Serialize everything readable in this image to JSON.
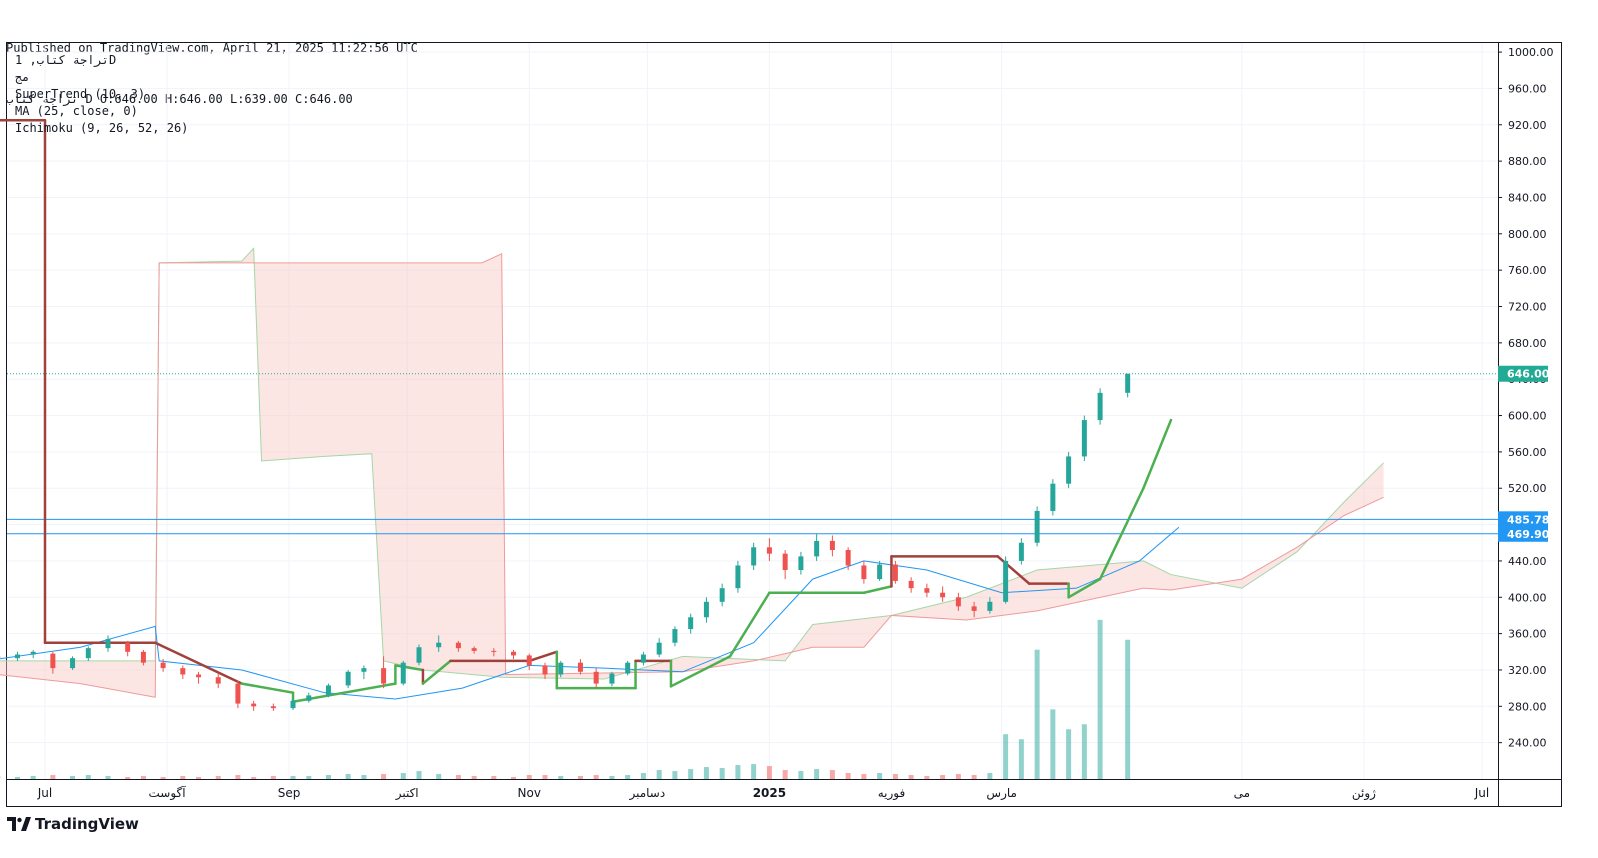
{
  "header": {
    "published": "Published on TradingView.com, April 21, 2025 11:22:56 UTC",
    "ohlc": "تراجة كتاب D O:646.00 H:646.00 L:639.00 C:646.00"
  },
  "legend": {
    "symbol": "تراجة كتاب, 1D",
    "exchange": "مج",
    "supertrend": "SuperTrend (10, 3)",
    "ma": "MA (25, close, 0)",
    "ichimoku": "Ichimoku (9, 26, 52, 26)"
  },
  "footer": {
    "brand": "TradingView",
    "logo_icon": "tradingview-logo-icon"
  },
  "colors": {
    "up": "#26a69a",
    "down": "#ef5350",
    "supertrend_up": "#4caf50",
    "supertrend_down": "#a0413c",
    "ma": "#2196f3",
    "hline": "#2196f3",
    "last_price": "#22ab94",
    "cloud_bull": "#c8e6c9",
    "cloud_bear": "#f8c8c4"
  },
  "chart_data": {
    "type": "candlestick",
    "title": "",
    "ylim": [
      200,
      1010
    ],
    "y_ticks": [
      "1000.00",
      "960.00",
      "920.00",
      "880.00",
      "840.00",
      "800.00",
      "760.00",
      "720.00",
      "680.00",
      "640.00",
      "600.00",
      "560.00",
      "520.00",
      "480.00",
      "440.00",
      "400.00",
      "360.00",
      "320.00",
      "280.00",
      "240.00"
    ],
    "x_labels": [
      {
        "label": "Jul",
        "date": "2024-07-01",
        "bold": false
      },
      {
        "label": "آگوست",
        "date": "2024-08-01",
        "bold": false
      },
      {
        "label": "Sep",
        "date": "2024-09-01",
        "bold": false
      },
      {
        "label": "اکتبر",
        "date": "2024-10-01",
        "bold": false
      },
      {
        "label": "Nov",
        "date": "2024-11-01",
        "bold": false
      },
      {
        "label": "دسامبر",
        "date": "2024-12-01",
        "bold": false
      },
      {
        "label": "2025",
        "date": "2025-01-01",
        "bold": true
      },
      {
        "label": "فوریه",
        "date": "2025-02-01",
        "bold": false
      },
      {
        "label": "مارس",
        "date": "2025-03-01",
        "bold": false
      },
      {
        "label": "می",
        "date": "2025-05-01",
        "bold": false
      },
      {
        "label": "ژوئن",
        "date": "2025-06-01",
        "bold": false
      },
      {
        "label": "Jul",
        "date": "2025-07-01",
        "bold": false
      }
    ],
    "last_price": {
      "label": "646.00",
      "value": 646
    },
    "horizontal_lines": [
      {
        "label": "485.78",
        "value": 485.78
      },
      {
        "label": "469.90",
        "value": 469.9
      }
    ],
    "candles": [
      [
        "2024-06-19",
        335,
        338,
        330,
        333
      ],
      [
        "2024-06-24",
        333,
        340,
        330,
        337
      ],
      [
        "2024-06-28",
        337,
        342,
        333,
        340
      ],
      [
        "2024-07-03",
        338,
        340,
        316,
        322
      ],
      [
        "2024-07-08",
        322,
        335,
        320,
        333
      ],
      [
        "2024-07-12",
        333,
        346,
        330,
        344
      ],
      [
        "2024-07-17",
        344,
        358,
        340,
        354
      ],
      [
        "2024-07-22",
        350,
        352,
        335,
        340
      ],
      [
        "2024-07-26",
        340,
        342,
        325,
        328
      ],
      [
        "2024-07-31",
        328,
        332,
        318,
        322
      ],
      [
        "2024-08-05",
        322,
        325,
        310,
        315
      ],
      [
        "2024-08-09",
        315,
        318,
        305,
        312
      ],
      [
        "2024-08-14",
        312,
        316,
        300,
        305
      ],
      [
        "2024-08-19",
        305,
        308,
        278,
        283
      ],
      [
        "2024-08-23",
        283,
        286,
        275,
        280
      ],
      [
        "2024-08-28",
        280,
        283,
        275,
        278
      ],
      [
        "2024-09-02",
        278,
        288,
        276,
        286
      ],
      [
        "2024-09-06",
        286,
        295,
        284,
        292
      ],
      [
        "2024-09-11",
        292,
        305,
        290,
        303
      ],
      [
        "2024-09-16",
        303,
        320,
        300,
        318
      ],
      [
        "2024-09-20",
        318,
        325,
        310,
        322
      ],
      [
        "2024-09-25",
        322,
        335,
        300,
        305
      ],
      [
        "2024-09-30",
        305,
        330,
        303,
        328
      ],
      [
        "2024-10-04",
        328,
        348,
        325,
        345
      ],
      [
        "2024-10-09",
        345,
        358,
        340,
        350
      ],
      [
        "2024-10-14",
        350,
        352,
        340,
        344
      ],
      [
        "2024-10-18",
        344,
        346,
        338,
        341
      ],
      [
        "2024-10-23",
        341,
        344,
        335,
        340
      ],
      [
        "2024-10-28",
        340,
        342,
        332,
        336
      ],
      [
        "2024-11-01",
        336,
        338,
        320,
        325
      ],
      [
        "2024-11-05",
        325,
        328,
        310,
        315
      ],
      [
        "2024-11-09",
        315,
        330,
        312,
        328
      ],
      [
        "2024-11-14",
        328,
        332,
        315,
        318
      ],
      [
        "2024-11-18",
        318,
        322,
        300,
        305
      ],
      [
        "2024-11-22",
        305,
        318,
        302,
        316
      ],
      [
        "2024-11-26",
        316,
        330,
        314,
        328
      ],
      [
        "2024-11-30",
        328,
        340,
        325,
        337
      ],
      [
        "2024-12-04",
        337,
        355,
        334,
        350
      ],
      [
        "2024-12-08",
        350,
        368,
        346,
        365
      ],
      [
        "2024-12-12",
        365,
        382,
        360,
        378
      ],
      [
        "2024-12-16",
        378,
        400,
        372,
        395
      ],
      [
        "2024-12-20",
        395,
        415,
        390,
        410
      ],
      [
        "2024-12-24",
        410,
        440,
        405,
        435
      ],
      [
        "2024-12-28",
        435,
        460,
        430,
        455
      ],
      [
        "2025-01-01",
        455,
        465,
        440,
        448
      ],
      [
        "2025-01-05",
        448,
        452,
        420,
        430
      ],
      [
        "2025-01-09",
        430,
        450,
        425,
        445
      ],
      [
        "2025-01-13",
        445,
        470,
        440,
        462
      ],
      [
        "2025-01-17",
        462,
        468,
        445,
        452
      ],
      [
        "2025-01-21",
        452,
        455,
        430,
        435
      ],
      [
        "2025-01-25",
        435,
        440,
        415,
        420
      ],
      [
        "2025-01-29",
        420,
        440,
        418,
        436
      ],
      [
        "2025-02-02",
        436,
        440,
        415,
        418
      ],
      [
        "2025-02-06",
        418,
        422,
        405,
        410
      ],
      [
        "2025-02-10",
        410,
        415,
        400,
        405
      ],
      [
        "2025-02-14",
        405,
        412,
        395,
        400
      ],
      [
        "2025-02-18",
        400,
        405,
        385,
        390
      ],
      [
        "2025-02-22",
        390,
        395,
        378,
        385
      ],
      [
        "2025-02-26",
        385,
        400,
        382,
        395
      ],
      [
        "2025-03-02",
        395,
        445,
        393,
        440
      ],
      [
        "2025-03-06",
        440,
        465,
        436,
        460
      ],
      [
        "2025-03-10",
        460,
        500,
        456,
        495
      ],
      [
        "2025-03-14",
        495,
        530,
        490,
        525
      ],
      [
        "2025-03-18",
        525,
        560,
        520,
        555
      ],
      [
        "2025-03-22",
        555,
        600,
        550,
        595
      ],
      [
        "2025-03-26",
        595,
        630,
        590,
        625
      ],
      [
        "2025-04-02",
        625,
        646,
        620,
        646
      ]
    ],
    "supertrend": [
      [
        "2024-06-19",
        925
      ],
      [
        "2024-07-01",
        925
      ],
      [
        "2024-07-01",
        350
      ],
      [
        "2024-07-29",
        350
      ],
      [
        "2024-08-20",
        305
      ],
      [
        "2024-09-02",
        295
      ],
      [
        "2024-09-02",
        285
      ],
      [
        "2024-09-28",
        305
      ],
      [
        "2024-09-28",
        325
      ],
      [
        "2024-10-05",
        320
      ],
      [
        "2024-10-05",
        305
      ],
      [
        "2024-10-12",
        330
      ],
      [
        "2024-11-01",
        330
      ],
      [
        "2024-11-08",
        340
      ],
      [
        "2024-11-08",
        300
      ],
      [
        "2024-11-28",
        300
      ],
      [
        "2024-11-28",
        330
      ],
      [
        "2024-12-07",
        330
      ],
      [
        "2024-12-07",
        302
      ],
      [
        "2024-12-22",
        335
      ],
      [
        "2025-01-01",
        405
      ],
      [
        "2025-01-25",
        405
      ],
      [
        "2025-02-01",
        412
      ],
      [
        "2025-02-01",
        445
      ],
      [
        "2025-02-28",
        445
      ],
      [
        "2025-03-08",
        415
      ],
      [
        "2025-03-18",
        415
      ],
      [
        "2025-03-18",
        400
      ],
      [
        "2025-03-26",
        420
      ],
      [
        "2025-04-06",
        520
      ],
      [
        "2025-04-13",
        595
      ]
    ],
    "ma": [
      [
        "2024-06-19",
        332
      ],
      [
        "2024-07-10",
        345
      ],
      [
        "2024-07-29",
        368
      ],
      [
        "2024-07-30",
        330
      ],
      [
        "2024-08-20",
        320
      ],
      [
        "2024-09-10",
        295
      ],
      [
        "2024-09-28",
        288
      ],
      [
        "2024-10-15",
        300
      ],
      [
        "2024-11-01",
        325
      ],
      [
        "2024-11-20",
        322
      ],
      [
        "2024-12-10",
        318
      ],
      [
        "2024-12-28",
        350
      ],
      [
        "2025-01-12",
        420
      ],
      [
        "2025-01-25",
        440
      ],
      [
        "2025-02-10",
        430
      ],
      [
        "2025-03-01",
        405
      ],
      [
        "2025-03-20",
        410
      ],
      [
        "2025-04-05",
        440
      ],
      [
        "2025-04-15",
        477
      ]
    ],
    "ichimoku_span_a": [
      [
        "2024-06-19",
        330
      ],
      [
        "2024-07-29",
        330
      ],
      [
        "2024-07-30",
        768
      ],
      [
        "2024-08-20",
        770
      ],
      [
        "2024-08-23",
        784
      ],
      [
        "2024-08-25",
        550
      ],
      [
        "2024-09-10",
        555
      ],
      [
        "2024-09-22",
        558
      ],
      [
        "2024-09-25",
        330
      ],
      [
        "2024-10-05",
        320
      ],
      [
        "2024-10-25",
        312
      ],
      [
        "2024-11-20",
        310
      ],
      [
        "2024-12-10",
        335
      ],
      [
        "2025-01-05",
        330
      ],
      [
        "2025-01-12",
        370
      ],
      [
        "2025-02-01",
        380
      ],
      [
        "2025-02-20",
        400
      ],
      [
        "2025-03-10",
        430
      ],
      [
        "2025-04-06",
        440
      ],
      [
        "2025-04-13",
        425
      ],
      [
        "2025-05-01",
        410
      ],
      [
        "2025-05-15",
        450
      ],
      [
        "2025-05-27",
        505
      ],
      [
        "2025-06-06",
        548
      ]
    ],
    "ichimoku_span_b": [
      [
        "2024-06-19",
        315
      ],
      [
        "2024-07-10",
        305
      ],
      [
        "2024-07-29",
        290
      ],
      [
        "2024-07-30",
        768
      ],
      [
        "2024-10-20",
        768
      ],
      [
        "2024-10-25",
        778
      ],
      [
        "2024-10-26",
        315
      ],
      [
        "2024-12-10",
        318
      ],
      [
        "2024-12-28",
        330
      ],
      [
        "2025-01-12",
        345
      ],
      [
        "2025-01-25",
        345
      ],
      [
        "2025-02-01",
        380
      ],
      [
        "2025-02-20",
        375
      ],
      [
        "2025-03-10",
        385
      ],
      [
        "2025-04-06",
        410
      ],
      [
        "2025-04-13",
        408
      ],
      [
        "2025-05-01",
        420
      ],
      [
        "2025-05-15",
        455
      ],
      [
        "2025-05-27",
        490
      ],
      [
        "2025-06-06",
        510
      ]
    ],
    "volume": [
      [
        "2024-06-19",
        3
      ],
      [
        "2024-06-24",
        2
      ],
      [
        "2024-06-28",
        3
      ],
      [
        "2024-07-03",
        4
      ],
      [
        "2024-07-08",
        3
      ],
      [
        "2024-07-12",
        4
      ],
      [
        "2024-07-17",
        3
      ],
      [
        "2024-07-22",
        2
      ],
      [
        "2024-07-26",
        3
      ],
      [
        "2024-07-31",
        2
      ],
      [
        "2024-08-05",
        3
      ],
      [
        "2024-08-09",
        2
      ],
      [
        "2024-08-14",
        3
      ],
      [
        "2024-08-19",
        4
      ],
      [
        "2024-08-23",
        2
      ],
      [
        "2024-08-28",
        3
      ],
      [
        "2024-09-02",
        3
      ],
      [
        "2024-09-06",
        3
      ],
      [
        "2024-09-11",
        4
      ],
      [
        "2024-09-16",
        5
      ],
      [
        "2024-09-20",
        4
      ],
      [
        "2024-09-25",
        5
      ],
      [
        "2024-09-30",
        6
      ],
      [
        "2024-10-04",
        8
      ],
      [
        "2024-10-09",
        5
      ],
      [
        "2024-10-14",
        4
      ],
      [
        "2024-10-18",
        3
      ],
      [
        "2024-10-23",
        3
      ],
      [
        "2024-10-28",
        2
      ],
      [
        "2024-11-01",
        4
      ],
      [
        "2024-11-05",
        4
      ],
      [
        "2024-11-09",
        3
      ],
      [
        "2024-11-14",
        3
      ],
      [
        "2024-11-18",
        4
      ],
      [
        "2024-11-22",
        3
      ],
      [
        "2024-11-26",
        4
      ],
      [
        "2024-11-30",
        6
      ],
      [
        "2024-12-04",
        9
      ],
      [
        "2024-12-08",
        8
      ],
      [
        "2024-12-12",
        10
      ],
      [
        "2024-12-16",
        12
      ],
      [
        "2024-12-20",
        11
      ],
      [
        "2024-12-24",
        14
      ],
      [
        "2024-12-28",
        15
      ],
      [
        "2025-01-01",
        13
      ],
      [
        "2025-01-05",
        9
      ],
      [
        "2025-01-09",
        8
      ],
      [
        "2025-01-13",
        10
      ],
      [
        "2025-01-17",
        9
      ],
      [
        "2025-01-21",
        6
      ],
      [
        "2025-01-25",
        5
      ],
      [
        "2025-01-29",
        6
      ],
      [
        "2025-02-02",
        5
      ],
      [
        "2025-02-06",
        4
      ],
      [
        "2025-02-10",
        3
      ],
      [
        "2025-02-14",
        4
      ],
      [
        "2025-02-18",
        5
      ],
      [
        "2025-02-22",
        4
      ],
      [
        "2025-02-26",
        6
      ],
      [
        "2025-03-02",
        45
      ],
      [
        "2025-03-06",
        40
      ],
      [
        "2025-03-10",
        130
      ],
      [
        "2025-03-14",
        70
      ],
      [
        "2025-03-18",
        50
      ],
      [
        "2025-03-22",
        55
      ],
      [
        "2025-03-26",
        160
      ],
      [
        "2025-04-02",
        140
      ]
    ],
    "volume_max": 190
  }
}
